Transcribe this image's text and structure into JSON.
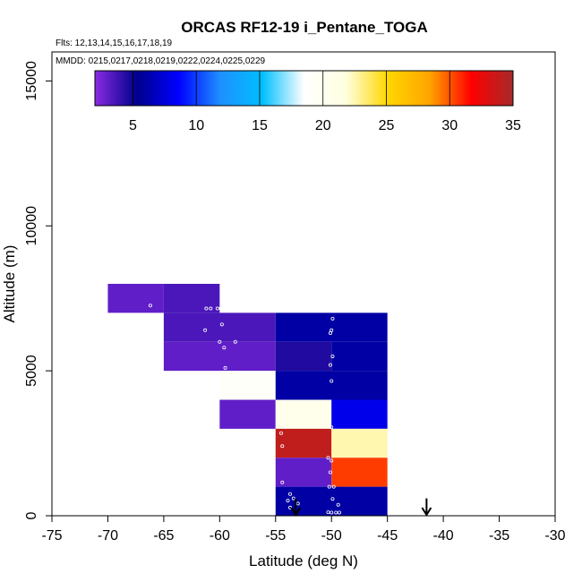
{
  "chart_data": {
    "type": "heatmap",
    "title": "ORCAS RF12-19 i_Pentane_TOGA",
    "flights_note": "Flts: 12,13,14,15,16,17,18,19",
    "dates_note": "MMDD: 0215,0217,0218,0219,0222,0224,0225,0229",
    "xlabel": "Latitude (deg N)",
    "ylabel": "Altitude (m)",
    "xlim": [
      -75,
      -30
    ],
    "ylim": [
      0,
      16000
    ],
    "x_ticks": [
      -75,
      -70,
      -65,
      -60,
      -55,
      -50,
      -45,
      -40,
      -35,
      -30
    ],
    "x_tick_labels": [
      "-75",
      "-70",
      "-65",
      "-60",
      "-55",
      "-50",
      "-45",
      "-40",
      "-35",
      "-30"
    ],
    "y_ticks": [
      0,
      5000,
      10000,
      15000
    ],
    "y_tick_labels": [
      "0",
      "5000",
      "10000",
      "15000"
    ],
    "colorbar": {
      "range": [
        2,
        35
      ],
      "ticks": [
        5,
        10,
        15,
        20,
        25,
        30,
        35
      ],
      "tick_labels": [
        "5",
        "10",
        "15",
        "20",
        "25",
        "30",
        "35"
      ],
      "colors": [
        "#8a2be2",
        "#00008b",
        "#0000ff",
        "#1e90ff",
        "#00bfff",
        "#ffffff",
        "#ffffe0",
        "#ffd700",
        "#ffa500",
        "#ff0000",
        "#a52a2a"
      ]
    },
    "cells": [
      {
        "lat": [
          -70,
          -65
        ],
        "alt": [
          7000,
          8000
        ],
        "value": 3
      },
      {
        "lat": [
          -65,
          -60
        ],
        "alt": [
          7000,
          8000
        ],
        "value": 3.5
      },
      {
        "lat": [
          -65,
          -55
        ],
        "alt": [
          6000,
          7000
        ],
        "value": 3.5
      },
      {
        "lat": [
          -55,
          -45
        ],
        "alt": [
          6000,
          7000
        ],
        "value": 6
      },
      {
        "lat": [
          -65,
          -55
        ],
        "alt": [
          5000,
          6000
        ],
        "value": 3
      },
      {
        "lat": [
          -55,
          -50
        ],
        "alt": [
          5000,
          6000
        ],
        "value": 4.5
      },
      {
        "lat": [
          -50,
          -45
        ],
        "alt": [
          5000,
          6000
        ],
        "value": 6
      },
      {
        "lat": [
          -60,
          -55
        ],
        "alt": [
          4000,
          5000
        ],
        "value": 19
      },
      {
        "lat": [
          -55,
          -45
        ],
        "alt": [
          4000,
          5000
        ],
        "value": 6
      },
      {
        "lat": [
          -60,
          -55
        ],
        "alt": [
          3000,
          4000
        ],
        "value": 3
      },
      {
        "lat": [
          -55,
          -50
        ],
        "alt": [
          3000,
          4000
        ],
        "value": 20.5
      },
      {
        "lat": [
          -50,
          -45
        ],
        "alt": [
          3000,
          4000
        ],
        "value": 8
      },
      {
        "lat": [
          -55,
          -50
        ],
        "alt": [
          2000,
          3000
        ],
        "value": 34
      },
      {
        "lat": [
          -50,
          -45
        ],
        "alt": [
          2000,
          3000
        ],
        "value": 22.5
      },
      {
        "lat": [
          -55,
          -50
        ],
        "alt": [
          1000,
          2000
        ],
        "value": 3
      },
      {
        "lat": [
          -50,
          -45
        ],
        "alt": [
          1000,
          2000
        ],
        "value": 30.5
      },
      {
        "lat": [
          -55,
          -45
        ],
        "alt": [
          0,
          1000
        ],
        "value": 6
      }
    ],
    "sample_points": [
      [
        -66.2,
        7250
      ],
      [
        -61.2,
        7150
      ],
      [
        -60.8,
        7150
      ],
      [
        -60.2,
        7150
      ],
      [
        -59.9,
        7150
      ],
      [
        -61.3,
        6400
      ],
      [
        -59.8,
        6600
      ],
      [
        -58.6,
        6000
      ],
      [
        -60.0,
        6000
      ],
      [
        -59.6,
        5800
      ],
      [
        -59.5,
        5100
      ],
      [
        -49.9,
        6800
      ],
      [
        -50.0,
        6400
      ],
      [
        -50.1,
        6300
      ],
      [
        -49.9,
        5500
      ],
      [
        -50.1,
        5200
      ],
      [
        -50.0,
        4650
      ],
      [
        -50.0,
        3050
      ],
      [
        -54.5,
        2850
      ],
      [
        -54.4,
        2400
      ],
      [
        -50.3,
        2000
      ],
      [
        -50.0,
        1900
      ],
      [
        -50.1,
        1500
      ],
      [
        -50.2,
        1000
      ],
      [
        -49.8,
        1000
      ],
      [
        -54.4,
        1150
      ],
      [
        -53.7,
        750
      ],
      [
        -53.4,
        600
      ],
      [
        -53.0,
        420
      ],
      [
        -49.9,
        580
      ],
      [
        -49.4,
        380
      ],
      [
        -50.3,
        120
      ],
      [
        -50.0,
        110
      ],
      [
        -49.6,
        110
      ],
      [
        -49.3,
        110
      ],
      [
        -53.9,
        520
      ],
      [
        -53.7,
        280
      ]
    ],
    "arrows": [
      {
        "lat": -53.2,
        "alt_top": 600,
        "alt_bottom": 0
      },
      {
        "lat": -41.5,
        "alt_top": 600,
        "alt_bottom": 0
      }
    ]
  }
}
